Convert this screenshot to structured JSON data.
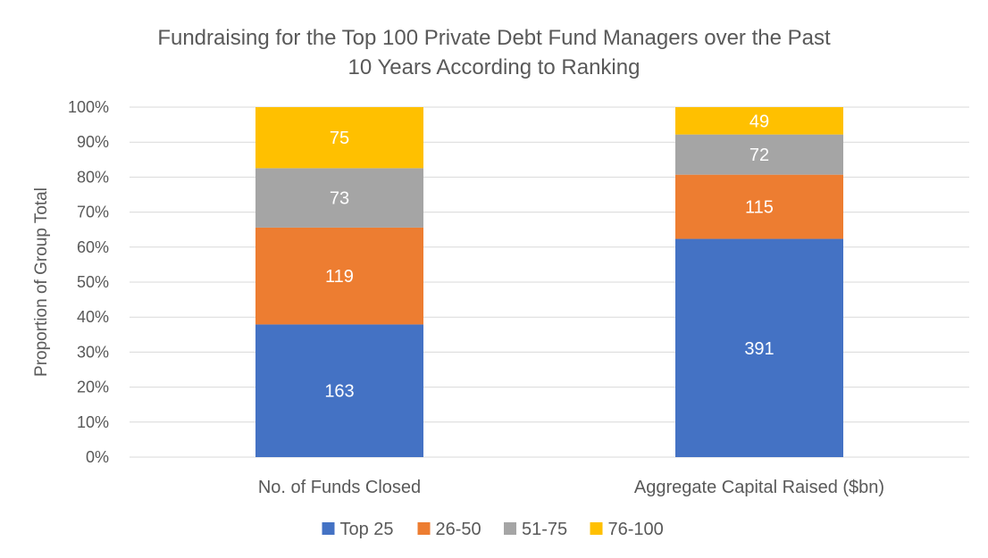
{
  "chart_data": {
    "type": "bar",
    "stacking": "percent",
    "title": "Fundraising for the Top 100 Private Debt Fund Managers over the Past 10 Years According to Ranking",
    "title_lines": [
      "Fundraising for the Top 100 Private Debt Fund Managers over the Past",
      "10 Years According to Ranking"
    ],
    "ylabel": "Proportion of Group Total",
    "xlabel": "",
    "ylim": [
      0,
      100
    ],
    "y_ticks": [
      "0%",
      "10%",
      "20%",
      "30%",
      "40%",
      "50%",
      "60%",
      "70%",
      "80%",
      "90%",
      "100%"
    ],
    "grid": true,
    "legend_position": "bottom",
    "categories": [
      "No. of Funds Closed",
      "Aggregate Capital Raised ($bn)"
    ],
    "series": [
      {
        "name": "Top 25",
        "values": [
          163,
          391
        ],
        "color": "#4472c4"
      },
      {
        "name": "26-50",
        "values": [
          119,
          115
        ],
        "color": "#ed7d31"
      },
      {
        "name": "51-75",
        "values": [
          73,
          72
        ],
        "color": "#a5a5a5"
      },
      {
        "name": "76-100",
        "values": [
          75,
          49
        ],
        "color": "#ffc000"
      }
    ]
  }
}
